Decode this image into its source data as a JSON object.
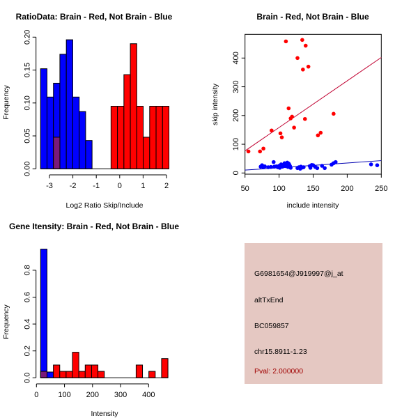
{
  "colors": {
    "brain": "#ff0000",
    "not_brain": "#0000ff",
    "overlap": "#7a1a7a",
    "brain_line": "#c00030",
    "not_brain_line": "#0000b0",
    "info_bg": "#e5c8c2",
    "pval": "#a00000"
  },
  "chart_data": [
    {
      "type": "bar",
      "title": "RatioData: Brain - Red, Not Brain - Blue",
      "xlabel": "Log2 Ratio Skip/Include",
      "ylabel": "Frequency",
      "xticks": [
        -3,
        -2,
        -1,
        0,
        1,
        2
      ],
      "xtick_labels": [
        "-3",
        "-2",
        "-1",
        "0",
        "1",
        "2"
      ],
      "yticks": [
        0,
        0.05,
        0.1,
        0.15,
        0.2
      ],
      "ytick_labels": [
        "0.00",
        "0.05",
        "0.10",
        "0.15",
        "0.20"
      ],
      "bin_width": 0.275,
      "series": [
        {
          "name": "Not Brain",
          "color": "blue",
          "bin_start": -3.38,
          "values": [
            0.152,
            0.109,
            0.13,
            0.174,
            0.196,
            0.109,
            0.087,
            0.043
          ]
        },
        {
          "name": "Brain",
          "color": "red",
          "bin_start": -0.37,
          "values": [
            0.095,
            0.095,
            0.143,
            0.19,
            0.095,
            0.048,
            0.095,
            0.095,
            0.095
          ]
        },
        {
          "name": "Brain (overlap)",
          "color": "purple",
          "bin_start": -2.83,
          "values": [
            0.048
          ]
        }
      ]
    },
    {
      "type": "scatter",
      "title": "Brain - Red, Not Brain - Blue",
      "xlabel": "include intensity",
      "ylabel": "skip intensity",
      "xlim": [
        50,
        250
      ],
      "xticks": [
        50,
        100,
        150,
        200,
        250
      ],
      "yticks": [
        0,
        100,
        200,
        300,
        400
      ],
      "series": [
        {
          "name": "Brain",
          "color": "red",
          "points": [
            [
              55,
              75
            ],
            [
              72,
              75
            ],
            [
              77,
              85
            ],
            [
              89,
              148
            ],
            [
              102,
              138
            ],
            [
              104,
              124
            ],
            [
              110,
              458
            ],
            [
              114,
              225
            ],
            [
              117,
              190
            ],
            [
              119,
              196
            ],
            [
              122,
              158
            ],
            [
              127,
              400
            ],
            [
              134,
              463
            ],
            [
              135,
              360
            ],
            [
              138,
              188
            ],
            [
              139,
              443
            ],
            [
              143,
              370
            ],
            [
              157,
              131
            ],
            [
              161,
              140
            ],
            [
              180,
              206
            ]
          ],
          "fit_line": [
            [
              50,
              77
            ],
            [
              250,
              402
            ]
          ]
        },
        {
          "name": "Not Brain",
          "color": "blue",
          "points": [
            [
              73,
              22
            ],
            [
              75,
              27
            ],
            [
              77,
              20
            ],
            [
              79,
              23
            ],
            [
              84,
              20
            ],
            [
              88,
              21
            ],
            [
              92,
              38
            ],
            [
              93,
              22
            ],
            [
              96,
              23
            ],
            [
              98,
              20
            ],
            [
              100,
              25
            ],
            [
              101,
              18
            ],
            [
              103,
              30
            ],
            [
              105,
              22
            ],
            [
              107,
              28
            ],
            [
              108,
              34
            ],
            [
              109,
              24
            ],
            [
              110,
              31
            ],
            [
              111,
              26
            ],
            [
              112,
              36
            ],
            [
              113,
              21
            ],
            [
              114,
              33
            ],
            [
              115,
              29
            ],
            [
              116,
              24
            ],
            [
              117,
              18
            ],
            [
              127,
              17
            ],
            [
              129,
              20
            ],
            [
              131,
              15
            ],
            [
              132,
              22
            ],
            [
              134,
              19
            ],
            [
              136,
              20
            ],
            [
              145,
              24
            ],
            [
              146,
              18
            ],
            [
              148,
              28
            ],
            [
              150,
              27
            ],
            [
              153,
              21
            ],
            [
              156,
              17
            ],
            [
              163,
              25
            ],
            [
              167,
              17
            ],
            [
              177,
              29
            ],
            [
              180,
              34
            ],
            [
              183,
              38
            ],
            [
              235,
              30
            ],
            [
              244,
              27
            ]
          ],
          "fit_line": [
            [
              50,
              10
            ],
            [
              250,
              43
            ]
          ]
        }
      ]
    },
    {
      "type": "bar",
      "title": "Gene Itensity: Brain - Red, Not Brain - Blue",
      "xlabel": "Intensity",
      "ylabel": "Frequency",
      "xticks": [
        0,
        100,
        200,
        300,
        400
      ],
      "xtick_labels": [
        "0",
        "100",
        "200",
        "300",
        "400"
      ],
      "yticks": [
        0,
        0.2,
        0.4,
        0.6,
        0.8
      ],
      "ytick_labels": [
        "0.0",
        "0.2",
        "0.4",
        "0.6",
        "0.8"
      ],
      "bin_width": 22.7,
      "series": [
        {
          "name": "Not Brain",
          "color": "blue",
          "bin_start": 15,
          "values": [
            0.957,
            0.043
          ]
        },
        {
          "name": "Brain",
          "color": "red",
          "bin_start": 15,
          "values": [
            0.048,
            0,
            0.095,
            0.048,
            0.048,
            0.19,
            0.048,
            0.095,
            0.095,
            0.048,
            0,
            0,
            0,
            0,
            0,
            0.095,
            0,
            0.048,
            0,
            0.143
          ]
        }
      ]
    }
  ],
  "info": {
    "probe_id": "G6981654@J919997@j_at",
    "event_type": "altTxEnd",
    "accession": "BC059857",
    "location": "chr15.8911-1.23",
    "pval": "Pval: 2.000000"
  }
}
